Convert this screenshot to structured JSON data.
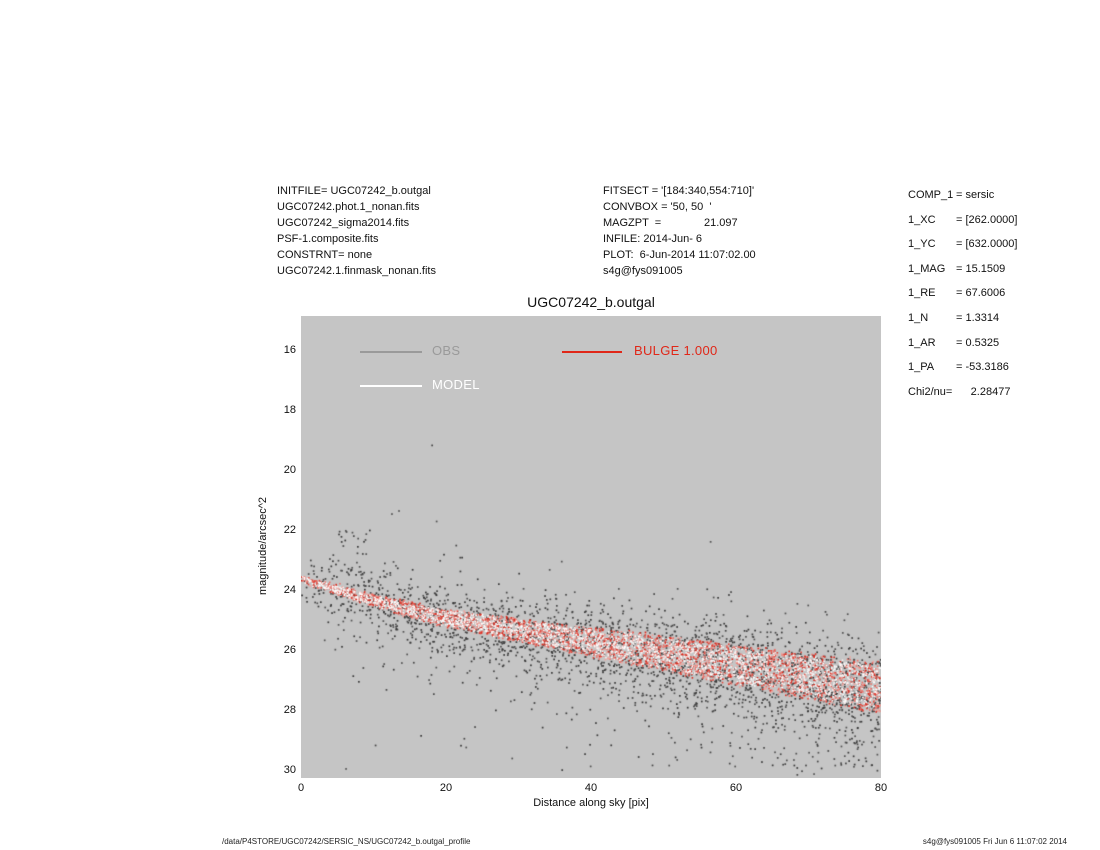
{
  "header": {
    "left_block": [
      "INITFILE= UGC07242_b.outgal",
      "UGC07242.phot.1_nonan.fits",
      "UGC07242_sigma2014.fits",
      "PSF-1.composite.fits",
      "CONSTRNT= none",
      "UGC07242.1.finmask_nonan.fits"
    ],
    "mid_block": [
      "FITSECT = '[184:340,554:710]'",
      "CONVBOX = '50, 50  '",
      "MAGZPT  =              21.097",
      "INFILE: 2014-Jun- 6",
      "PLOT:  6-Jun-2014 11:07:02.00",
      "s4g@fys091005"
    ],
    "params": {
      "rows": [
        {
          "k": "COMP_1",
          "v": "= sersic"
        },
        {
          "k": "1_XC",
          "v": "= [262.0000]"
        },
        {
          "k": "1_YC",
          "v": "= [632.0000]"
        },
        {
          "k": "1_MAG",
          "v": "= 15.1509"
        },
        {
          "k": "1_RE",
          "v": "= 67.6006"
        },
        {
          "k": "1_N",
          "v": "= 1.3314"
        },
        {
          "k": "1_AR",
          "v": "= 0.5325"
        },
        {
          "k": "1_PA",
          "v": "= -53.3186"
        }
      ],
      "chi2": "Chi2/nu=      2.28477"
    }
  },
  "chart_data": {
    "type": "scatter",
    "title": "UGC07242_b.outgal",
    "xlabel": "Distance along sky [pix]",
    "ylabel": "magnitude/arcsec^2",
    "xlim": [
      0,
      80
    ],
    "ylim_mag": [
      14.88,
      30.25
    ],
    "y_inverted": true,
    "x_ticks": [
      0,
      20,
      40,
      60,
      80
    ],
    "y_ticks": [
      16,
      18,
      20,
      22,
      24,
      26,
      28,
      30
    ],
    "grid": false,
    "background": "#c5c5c5",
    "legend": [
      {
        "label": "OBS",
        "color": "#9a9a9a",
        "position": "inside-top-left"
      },
      {
        "label": "MODEL",
        "color": "#ffffff",
        "position": "inside-top-left"
      },
      {
        "label": "BULGE  1.000",
        "color": "#e02718",
        "position": "inside-top-center"
      }
    ],
    "profile_center_mag": [
      [
        0,
        23.62
      ],
      [
        5,
        24.0
      ],
      [
        10,
        24.35
      ],
      [
        15,
        24.65
      ],
      [
        20,
        24.92
      ],
      [
        25,
        25.13
      ],
      [
        30,
        25.33
      ],
      [
        40,
        25.72
      ],
      [
        50,
        26.1
      ],
      [
        60,
        26.5
      ],
      [
        70,
        26.88
      ],
      [
        80,
        27.28
      ]
    ],
    "seed": 1234,
    "series": [
      {
        "name": "OBS",
        "kind": "observed-surface-brightness",
        "colors": [
          "#383838",
          "#454545",
          "#525252"
        ],
        "n": 2700,
        "size": 1.7,
        "x_power": 0.75,
        "spread": "gauss",
        "sigma0": 0.45,
        "sigma_slope": 0.0045,
        "tail_prob0": 0.1,
        "tail_prob_slope": 0.004,
        "tail_scale": 1.15,
        "bright_prob": 0.06,
        "bright_scale": 0.8,
        "clusters": [
          {
            "x_range": [
              3.5,
              9.5
            ],
            "mag_range": [
              21.85,
              23.4
            ],
            "n": 30
          }
        ]
      },
      {
        "name": "BULGE",
        "kind": "sersic-component",
        "colors": [
          "#d8281c",
          "#e2463a",
          "#ec7168",
          "#f2a19a"
        ],
        "n": 2800,
        "size": 1.6,
        "x_power": 0.8,
        "spread": "uniform",
        "hw0": 0.1,
        "hw_slope": 0.0095
      },
      {
        "name": "MODEL",
        "kind": "total-model",
        "colors": [
          "#ffffff",
          "#fdf4f3"
        ],
        "n": 1900,
        "size": 1.5,
        "x_power": 0.8,
        "spread": "uniform",
        "hw0": 0.07,
        "hw_slope": 0.0085
      }
    ]
  },
  "footer": {
    "left": "/data/P4STORE/UGC07242/SERSIC_NS/UGC07242_b.outgal_profile",
    "right": "s4g@fys091005  Fri Jun  6 11:07:02 2014"
  }
}
